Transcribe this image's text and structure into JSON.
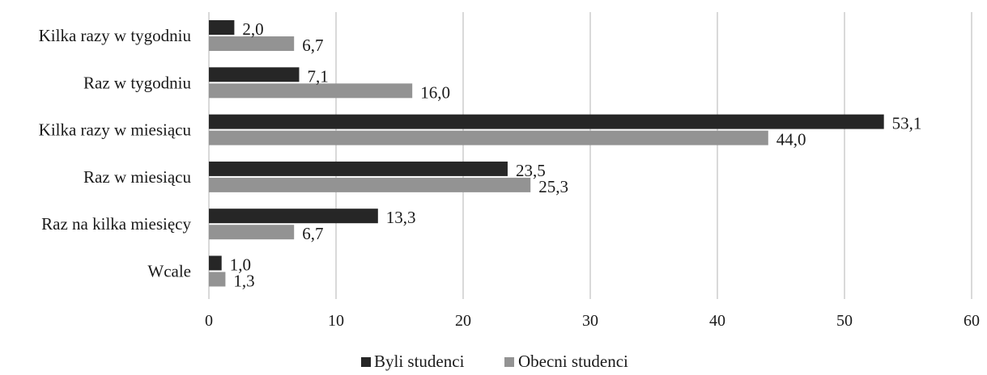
{
  "chart_data": {
    "type": "bar",
    "orientation": "horizontal",
    "categories": [
      "Kilka razy w tygodniu",
      "Raz w tygodniu",
      "Kilka razy w miesiącu",
      "Raz w miesiącu",
      "Raz na kilka miesięcy",
      "Wcale"
    ],
    "series": [
      {
        "name": "Byli studenci",
        "color": "#262626",
        "values": [
          2.0,
          7.1,
          53.1,
          23.5,
          13.3,
          1.0
        ],
        "labels": [
          "2,0",
          "7,1",
          "53,1",
          "23,5",
          "13,3",
          "1,0"
        ]
      },
      {
        "name": "Obecni studenci",
        "color": "#939393",
        "values": [
          6.7,
          16.0,
          44.0,
          25.3,
          6.7,
          1.3
        ],
        "labels": [
          "6,7",
          "16,0",
          "44,0",
          "25,3",
          "6,7",
          "1,3"
        ]
      }
    ],
    "xlim": [
      0,
      60
    ],
    "xticks": [
      0,
      10,
      20,
      30,
      40,
      50,
      60
    ],
    "grid": true,
    "legend_position": "bottom"
  }
}
